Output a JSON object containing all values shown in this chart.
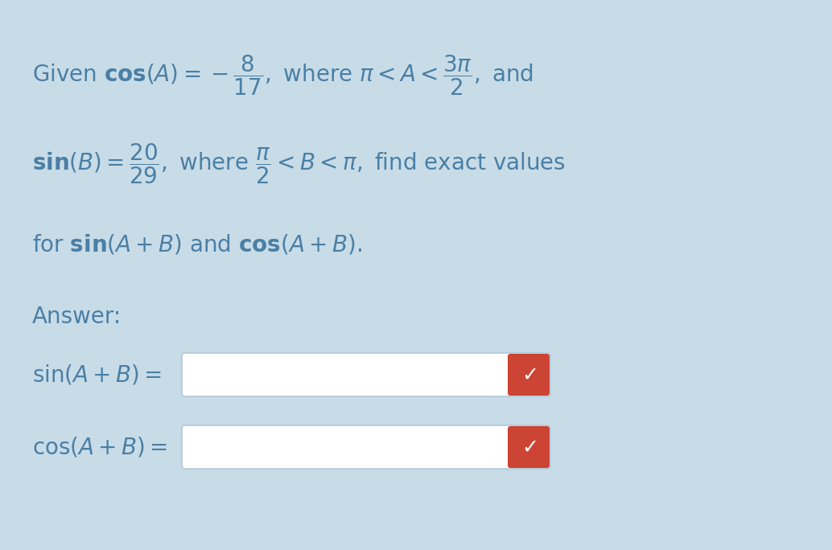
{
  "bg_color": "#c8dce8",
  "text_color": "#4a7fa5",
  "body_fontsize": 20,
  "input_box_color": "#ffffff",
  "check_box_color": "#cc4433",
  "check_color": "#ffffff",
  "line1": "Given $\\mathbf{cos}(A) = -\\dfrac{8}{17},$ where $\\pi < A < \\dfrac{3\\pi}{2},$ and",
  "line2": "$\\mathbf{sin}(B) = \\dfrac{20}{29},$ where $\\dfrac{\\pi}{2} < B < \\pi,$ find exact values",
  "line3": "for $\\mathbf{sin}(A+B)$ and $\\mathbf{cos}(A+B).$",
  "answer_label": "Answer:",
  "sin_label": "$\\mathrm{sin}(A + B) =$",
  "cos_label": "$\\mathrm{cos}(A + B) =$"
}
